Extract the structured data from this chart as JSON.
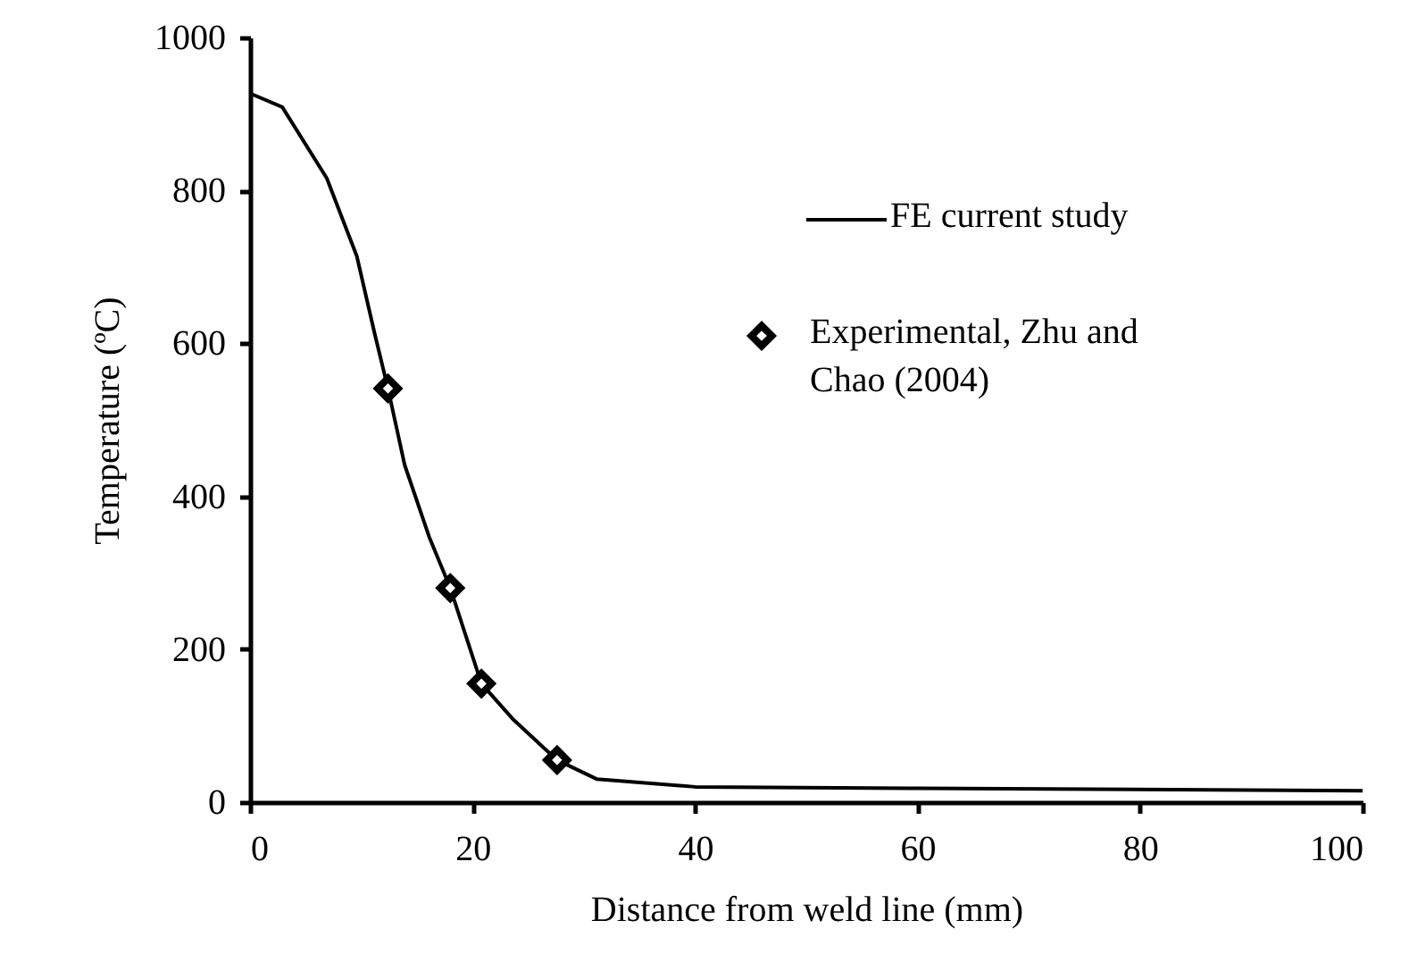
{
  "chart_data": {
    "type": "line",
    "xlabel": "Distance from weld line (mm)",
    "ylabel": "Temperature (ºC)",
    "xlim": [
      0,
      100
    ],
    "xticks": [
      0,
      20,
      40,
      60,
      80,
      100
    ],
    "ylim": [
      0,
      1000
    ],
    "yticks": [
      0,
      200,
      400,
      600,
      800,
      1000
    ],
    "grid": false,
    "legend": "top right",
    "series": [
      {
        "name": "FE current study",
        "color": "#000000",
        "marker": "none",
        "line_style": "solid",
        "x": [
          0,
          2.9,
          6.9,
          9.6,
          11.2,
          12.4,
          13.9,
          16.1,
          18.0,
          20.8,
          23.6,
          27.6,
          31.2,
          40,
          60,
          100
        ],
        "values": [
          927,
          909,
          816,
          714,
          613,
          541,
          441,
          347,
          280,
          155,
          109,
          55,
          30,
          20,
          18,
          15
        ]
      },
      {
        "name": "Experimental, Zhu and Chao (2004)",
        "type": "scatter",
        "color": "#000000",
        "marker": "diamond",
        "x": [
          12.4,
          18.0,
          20.8,
          27.6
        ],
        "values": [
          541,
          280,
          155,
          55
        ]
      }
    ]
  }
}
